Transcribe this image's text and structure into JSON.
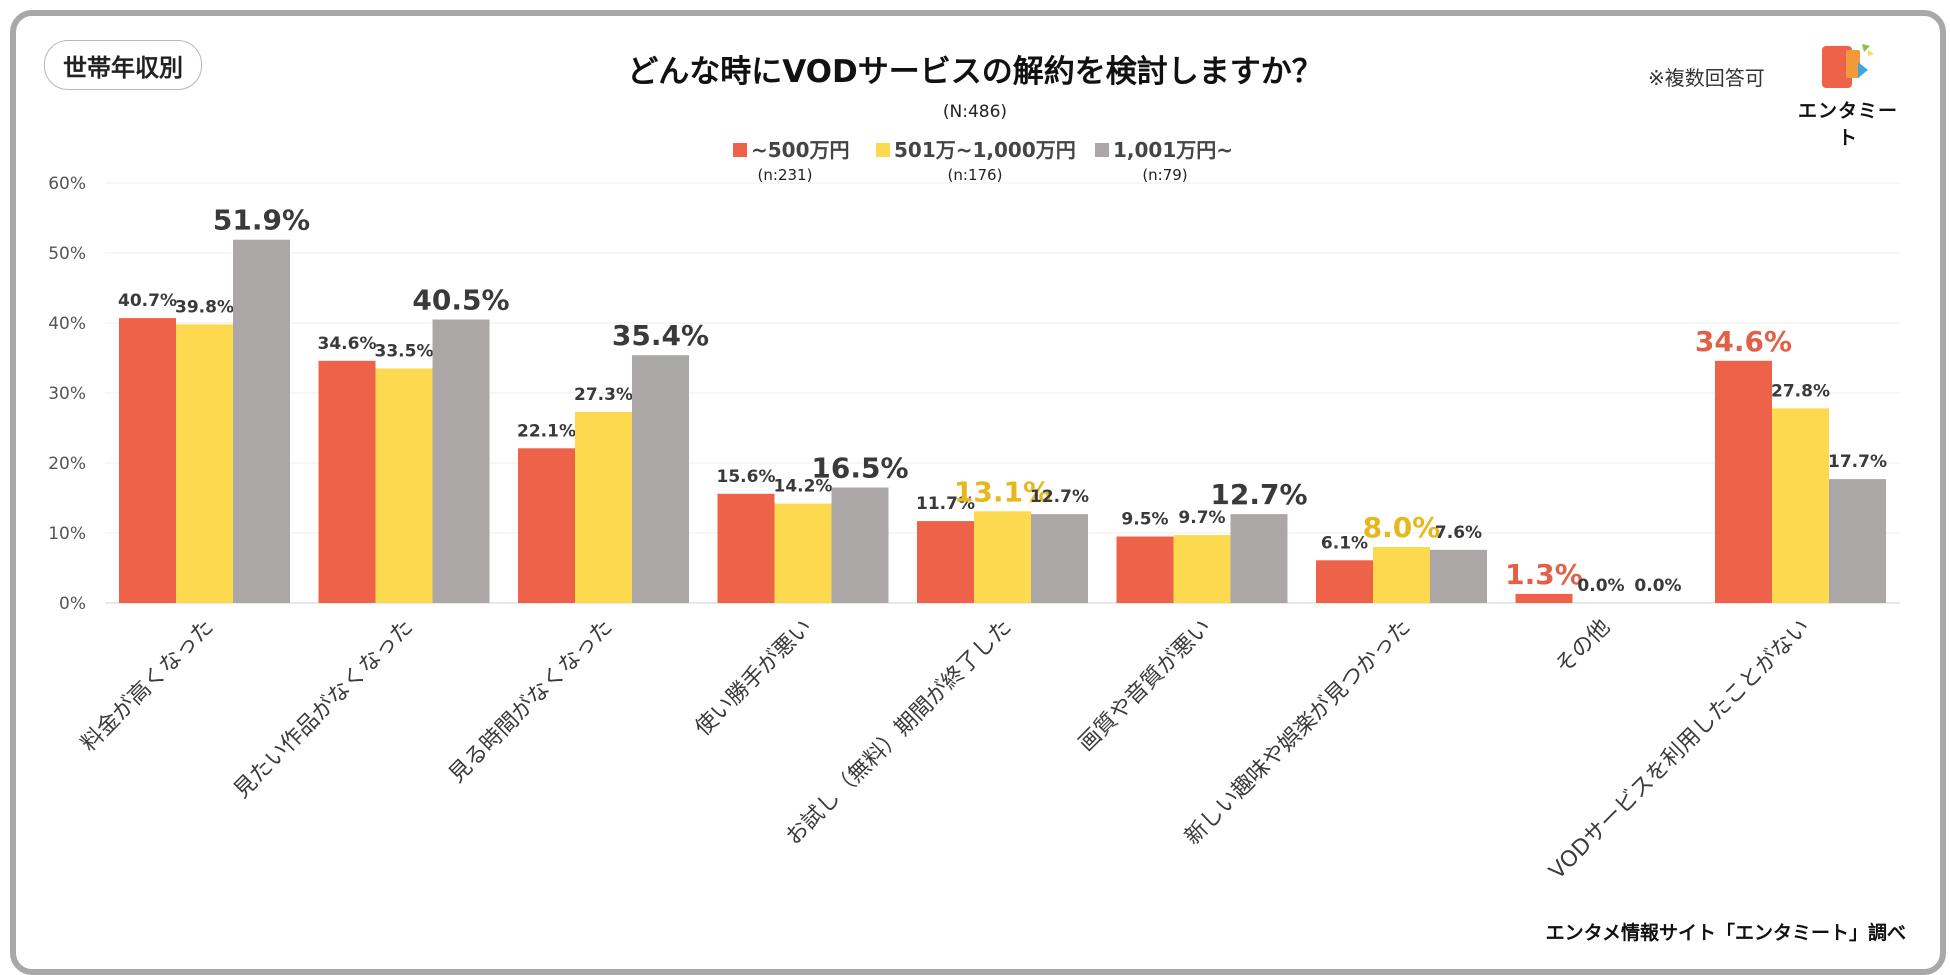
{
  "segment_label": "世帯年収別",
  "note": "※複数回答可",
  "logo": {
    "text": "エンタミート"
  },
  "source": "エンタメ情報サイト「エンタミート」調べ",
  "colors": {
    "s1": "#EE6249",
    "s2": "#FCD94E",
    "s3": "#ABA7A7",
    "accent_dark": "#3a3a3a",
    "accent_orange": "#E06148",
    "accent_gold": "#E7B81E"
  },
  "chart_data": {
    "type": "bar",
    "title": "どんな時にVODサービスの解約を検討しますか？",
    "subtitle": "(N:486)",
    "xlabel": "",
    "ylabel": "",
    "ylim": [
      0,
      60
    ],
    "yticks": [
      0,
      10,
      20,
      30,
      40,
      50,
      60
    ],
    "ytick_labels": [
      "0%",
      "10%",
      "20%",
      "30%",
      "40%",
      "50%",
      "60%"
    ],
    "grid": true,
    "legend_position": "top-center",
    "categories": [
      "料金が高くなった",
      "見たい作品がなくなった",
      "見る時間がなくなった",
      "使い勝手が悪い",
      "お試し（無料）期間が終了した",
      "画質や音質が悪い",
      "新しい趣味や娯楽が見つかった",
      "その他",
      "VODサービスを利用したことがない"
    ],
    "series": [
      {
        "name": "~500万円",
        "n": "(n:231)",
        "color": "#EE6249",
        "values": [
          40.7,
          34.6,
          22.1,
          15.6,
          11.7,
          9.5,
          6.1,
          1.3,
          34.6
        ],
        "labels": [
          "40.7%",
          "34.6%",
          "22.1%",
          "15.6%",
          "11.7%",
          "9.5%",
          "6.1%",
          "1.3%",
          "34.6%"
        ]
      },
      {
        "name": "501万~1,000万円",
        "n": "(n:176)",
        "color": "#FCD94E",
        "values": [
          39.8,
          33.5,
          27.3,
          14.2,
          13.1,
          9.7,
          8.0,
          0.0,
          27.8
        ],
        "labels": [
          "39.8%",
          "33.5%",
          "27.3%",
          "14.2%",
          "13.1%",
          "9.7%",
          "8.0%",
          "0.0%",
          "27.8%"
        ]
      },
      {
        "name": "1,001万円~",
        "n": "(n:79)",
        "color": "#ABA7A7",
        "values": [
          51.9,
          40.5,
          35.4,
          16.5,
          12.7,
          12.7,
          7.6,
          0.0,
          17.7
        ],
        "labels": [
          "51.9%",
          "40.5%",
          "35.4%",
          "16.5%",
          "12.7%",
          "12.7%",
          "7.6%",
          "0.0%",
          "17.7%"
        ]
      }
    ],
    "highlights": [
      {
        "category": 0,
        "series": 2,
        "color": "dark"
      },
      {
        "category": 1,
        "series": 2,
        "color": "dark"
      },
      {
        "category": 2,
        "series": 2,
        "color": "dark"
      },
      {
        "category": 3,
        "series": 2,
        "color": "dark"
      },
      {
        "category": 4,
        "series": 1,
        "color": "gold"
      },
      {
        "category": 5,
        "series": 2,
        "color": "dark"
      },
      {
        "category": 6,
        "series": 1,
        "color": "gold"
      },
      {
        "category": 7,
        "series": 0,
        "color": "orange"
      },
      {
        "category": 8,
        "series": 0,
        "color": "orange"
      }
    ]
  }
}
